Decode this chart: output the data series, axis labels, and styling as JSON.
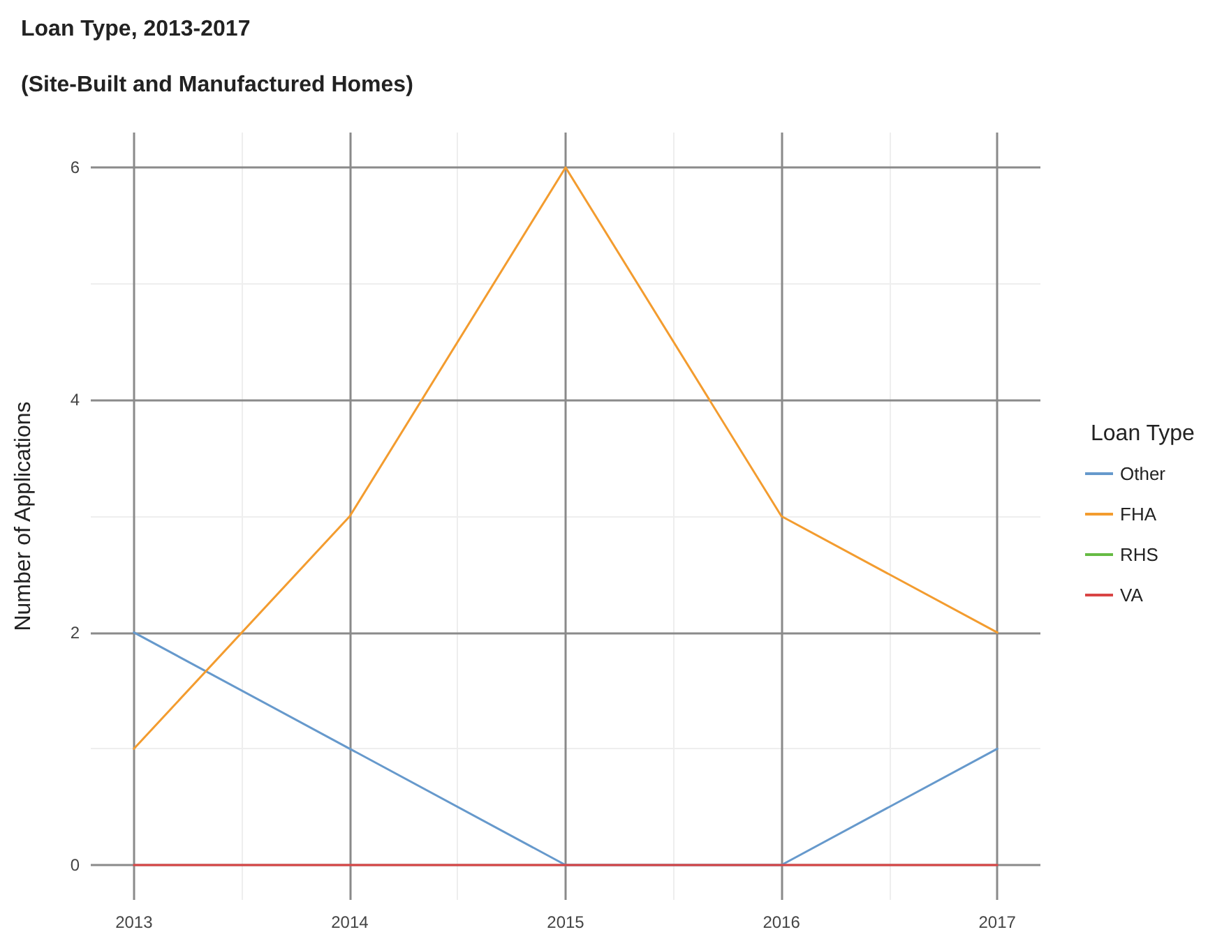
{
  "chart_data": {
    "type": "line",
    "title": "Loan Type, 2013-2017",
    "subtitle": "(Site-Built and Manufactured Homes)",
    "ylabel": "Number of Applications",
    "legend_title": "Loan Type",
    "x": [
      2013,
      2014,
      2015,
      2016,
      2017
    ],
    "series": [
      {
        "name": "Other",
        "color": "#6699cc",
        "values": [
          2,
          1,
          0,
          0,
          1
        ]
      },
      {
        "name": "FHA",
        "color": "#f39c2f",
        "values": [
          1,
          3,
          6,
          3,
          2
        ]
      },
      {
        "name": "RHS",
        "color": "#66bb44",
        "values": [
          null,
          null,
          null,
          null,
          null
        ]
      },
      {
        "name": "VA",
        "color": "#d94545",
        "values": [
          0,
          0,
          0,
          0,
          0
        ]
      }
    ],
    "xlim": [
      2012.8,
      2017.2
    ],
    "xticks": [
      2013,
      2014,
      2015,
      2016,
      2017
    ],
    "ylim": [
      -0.3,
      6.3
    ],
    "yticks": [
      0,
      2,
      4,
      6
    ],
    "grid": true,
    "legend": "right",
    "marker": "none",
    "line_style": "solid"
  }
}
